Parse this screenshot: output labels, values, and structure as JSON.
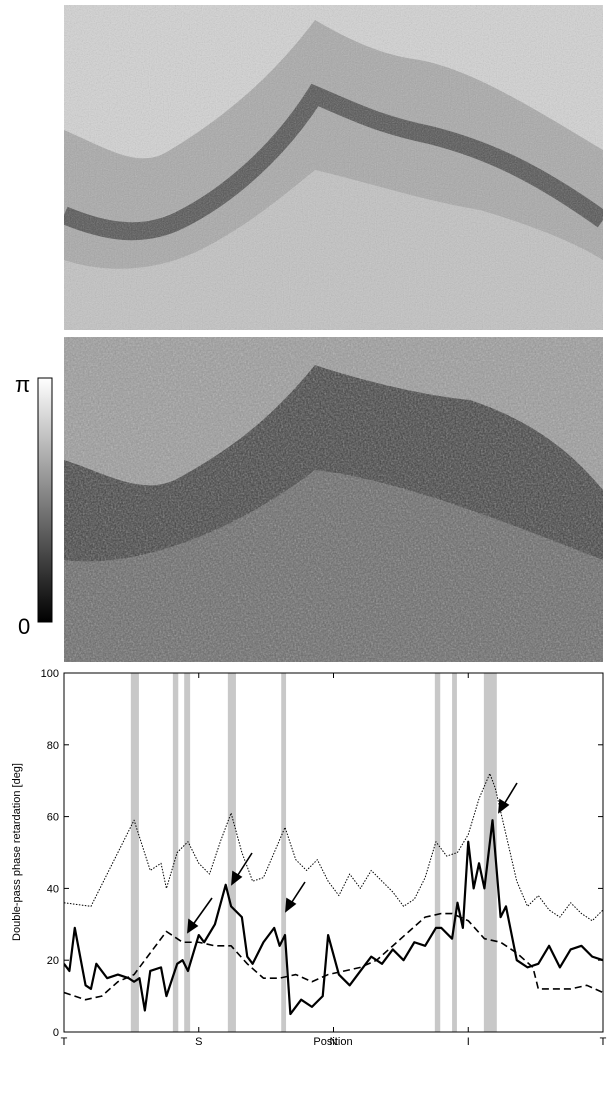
{
  "chart_data": {
    "type": "line",
    "ylabel": "Double-pass phase retardation [deg]",
    "xlabel": "Position",
    "colorbar": {
      "max_label": "π",
      "min_label": "0"
    },
    "xlim": [
      0,
      100
    ],
    "xticks": [
      {
        "value": 0,
        "label": "T"
      },
      {
        "value": 25,
        "label": "S"
      },
      {
        "value": 50,
        "label": "N"
      },
      {
        "value": 75,
        "label": "I"
      },
      {
        "value": 100,
        "label": "T"
      }
    ],
    "ylim": [
      0,
      100
    ],
    "yticks": [
      0,
      20,
      40,
      60,
      80,
      100
    ],
    "shaded_regions": [
      [
        12.4,
        13.9
      ],
      [
        20.2,
        21.2
      ],
      [
        22.3,
        23.4
      ],
      [
        30.4,
        31.9
      ],
      [
        40.3,
        41.2
      ],
      [
        68.8,
        69.8
      ],
      [
        72.0,
        72.9
      ],
      [
        77.9,
        80.3
      ]
    ],
    "shade_color": "#c8c8c8",
    "series": [
      {
        "color": "#000000",
        "line_style": "dotted",
        "line_width": 1,
        "x": [
          0,
          5,
          13,
          16,
          18,
          19,
          21,
          23,
          25,
          27,
          29,
          31,
          33,
          35,
          37,
          39,
          41,
          43,
          45,
          47,
          49,
          51,
          53,
          55,
          57,
          59,
          61,
          63,
          65,
          67,
          69,
          71,
          73,
          75,
          77,
          79,
          80,
          82,
          84,
          86,
          88,
          90,
          92,
          94,
          96,
          98,
          100
        ],
        "values": [
          36,
          35,
          59,
          45,
          47,
          40,
          50,
          53,
          47,
          44,
          53,
          61,
          50,
          42,
          43,
          50,
          57,
          48,
          45,
          48,
          42,
          38,
          44,
          40,
          45,
          42,
          39,
          35,
          37,
          43,
          53,
          49,
          50,
          55,
          65,
          72,
          68,
          55,
          42,
          35,
          38,
          34,
          32,
          36,
          33,
          31,
          34
        ]
      },
      {
        "color": "#000000",
        "line_style": "dashed",
        "line_width": 1.6,
        "x": [
          0,
          4,
          7,
          10,
          13,
          16,
          19,
          22,
          25,
          28,
          31,
          34,
          37,
          40,
          43,
          46,
          49,
          52,
          55,
          58,
          61,
          64,
          67,
          70,
          72,
          75,
          78,
          81,
          84,
          87,
          88,
          90,
          94,
          97,
          100
        ],
        "values": [
          11,
          9,
          10,
          14,
          16,
          22,
          28,
          25,
          25,
          24,
          24,
          19,
          15,
          15,
          16,
          14,
          16,
          17,
          18,
          20,
          24,
          28,
          32,
          33,
          33,
          31,
          26,
          25,
          22,
          18,
          12,
          12,
          12,
          13,
          11
        ]
      },
      {
        "color": "#000000",
        "line_style": "solid",
        "line_width": 2.2,
        "x": [
          0,
          1,
          2,
          4,
          5,
          6,
          8,
          10,
          12,
          13,
          14,
          15,
          16,
          18,
          19,
          21,
          22,
          23,
          25,
          26,
          28,
          30,
          31,
          33,
          34,
          35,
          37,
          39,
          40,
          41,
          42,
          44,
          46,
          48,
          49,
          51,
          53,
          55,
          57,
          59,
          61,
          63,
          65,
          67,
          69,
          70,
          72,
          73,
          74,
          75,
          76,
          77,
          78,
          79.5,
          81,
          82,
          84,
          86,
          88,
          90,
          92,
          94,
          96,
          98,
          100
        ],
        "values": [
          19,
          17,
          29,
          13,
          12,
          19,
          15,
          16,
          15,
          14,
          15,
          6,
          17,
          18,
          10,
          19,
          20,
          17,
          27,
          25,
          30,
          41,
          35,
          32,
          21,
          19,
          25,
          29,
          24,
          27,
          5,
          9,
          7,
          10,
          27,
          16,
          13,
          17,
          21,
          19,
          23,
          20,
          25,
          24,
          29,
          29,
          26,
          36,
          29,
          53,
          40,
          47,
          40,
          59,
          32,
          35,
          20,
          18,
          19,
          24,
          18,
          23,
          24,
          21,
          20
        ]
      }
    ]
  }
}
